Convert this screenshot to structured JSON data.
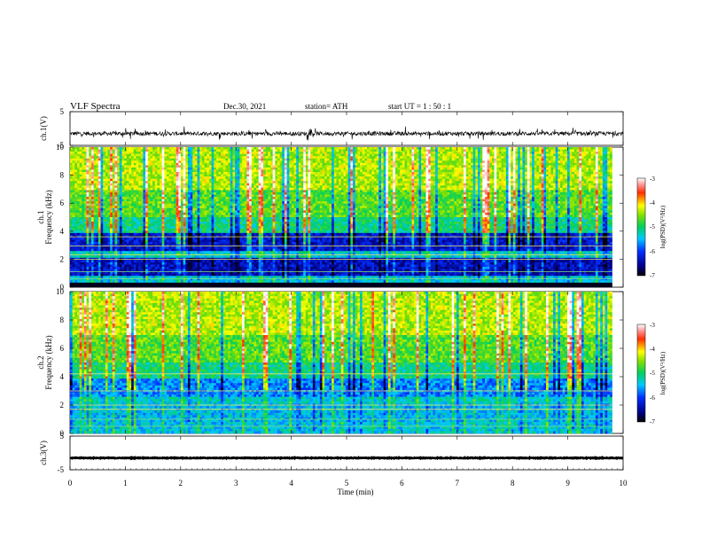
{
  "header": {
    "title": "VLF  Spectra",
    "date": "Dec.30, 2021",
    "station": "station= ATH",
    "start": "start  UT  =    1  : 50 : 1"
  },
  "chart_data": [
    {
      "type": "line",
      "panel": "ch1-waveform",
      "ylabel": "ch.1(V)",
      "ylim": [
        -5,
        5
      ],
      "yticks": [
        "5",
        "-5"
      ],
      "xlim": [
        0,
        10
      ],
      "baseline_v": -1.5,
      "amplitude_v": 0.6
    },
    {
      "type": "heatmap",
      "panel": "ch1-spectrogram",
      "ylabel_line1": "ch.1",
      "ylabel_line2": "Frequency  (kHz)",
      "ylim": [
        0,
        10
      ],
      "yticks": [
        "0",
        "2",
        "4",
        "6",
        "8",
        "10"
      ],
      "xlim": [
        0,
        9.8
      ],
      "colorbar": {
        "label": "log(PSD)(V²/Hz)",
        "range": [
          -7,
          -3
        ],
        "ticks": [
          "-3",
          "-4",
          "-5",
          "-6",
          "-7"
        ]
      }
    },
    {
      "type": "heatmap",
      "panel": "ch2-spectrogram",
      "ylabel_line1": "ch.2",
      "ylabel_line2": "Frequency  (kHz)",
      "ylim": [
        0,
        10
      ],
      "yticks": [
        "0",
        "2",
        "4",
        "6",
        "8",
        "10"
      ],
      "xlim": [
        0,
        9.8
      ],
      "colorbar": {
        "label": "log(PSD)(V²/Hz)",
        "range": [
          -7,
          -3
        ],
        "ticks": [
          "-3",
          "-4",
          "-5",
          "-6",
          "-7"
        ]
      }
    },
    {
      "type": "line",
      "panel": "ch3-waveform",
      "ylabel": "ch.3(V)",
      "ylim": [
        -5,
        5
      ],
      "yticks": [
        "5",
        "-5"
      ],
      "xlim": [
        0,
        10
      ],
      "baseline_v": -1.5,
      "amplitude_v": 0.1
    }
  ],
  "x_axis": {
    "label": "Time  (min)",
    "range": [
      0,
      10
    ],
    "ticks": [
      "0",
      "1",
      "2",
      "3",
      "4",
      "5",
      "6",
      "7",
      "8",
      "9",
      "10"
    ]
  }
}
